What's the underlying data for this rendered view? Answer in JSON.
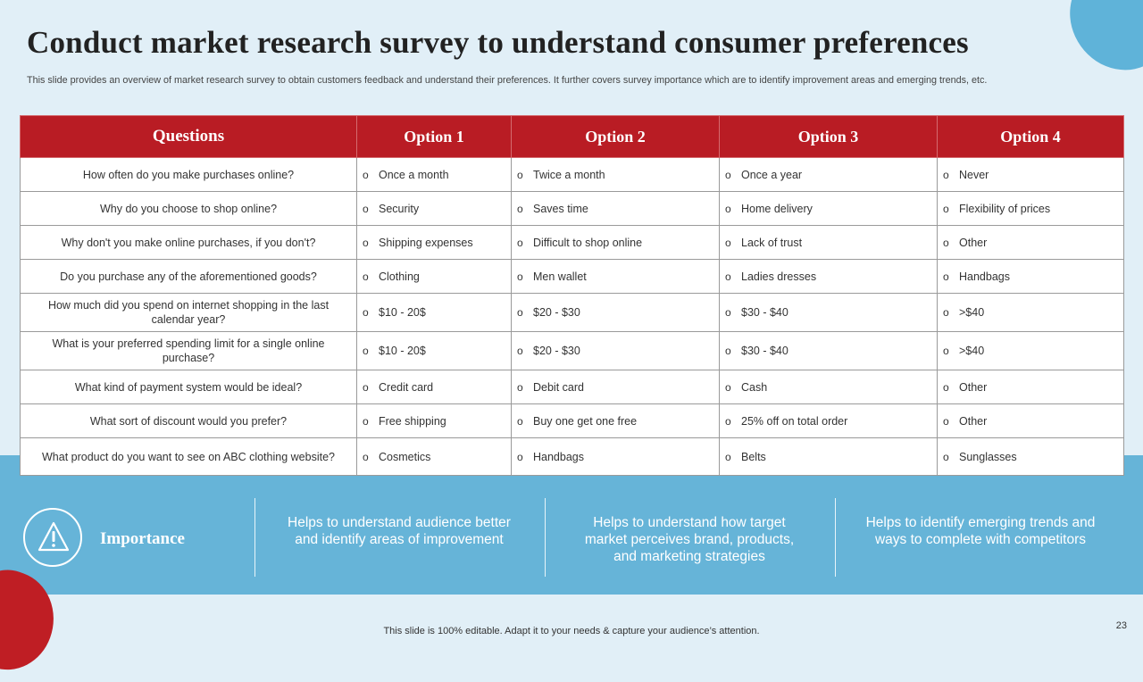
{
  "title": "Conduct market research survey to understand consumer preferences",
  "subtitle": "This slide provides an overview of market research survey to obtain customers feedback and understand their preferences. It further covers survey importance which are to identify improvement areas and emerging trends, etc.",
  "table": {
    "headers": [
      "Questions",
      "Option 1",
      "Option 2",
      "Option 3",
      "Option 4"
    ],
    "bullet_glyph": "o",
    "rows": [
      {
        "question": "How often do you make purchases online?",
        "options": [
          "Once a month",
          "Twice a month",
          "Once a year",
          "Never"
        ]
      },
      {
        "question": "Why do you choose to shop online?",
        "options": [
          "Security",
          "Saves time",
          "Home delivery",
          "Flexibility of prices"
        ]
      },
      {
        "question": "Why don't you make online purchases,  if you don't?",
        "options": [
          "Shipping expenses",
          "Difficult to shop online",
          "Lack of trust",
          "Other"
        ]
      },
      {
        "question": "Do you purchase any of the aforementioned  goods?",
        "options": [
          "Clothing",
          "Men wallet",
          "Ladies dresses",
          "Handbags"
        ]
      },
      {
        "question": "How much did you spend on internet shopping in the last calendar year?",
        "options": [
          "$10 - 20$",
          "$20 - $30",
          "$30 - $40",
          ">$40"
        ]
      },
      {
        "question": "What is your preferred  spending limit for a single online purchase?",
        "options": [
          "$10 - 20$",
          "$20 - $30",
          "$30 - $40",
          ">$40"
        ]
      },
      {
        "question": "What kind of payment system would be ideal?",
        "options": [
          "Credit card",
          "Debit card",
          "Cash",
          "Other"
        ]
      },
      {
        "question": "What sort of discount would you prefer?",
        "options": [
          "Free shipping",
          "Buy one get one free",
          "25% off on total order",
          "Other"
        ]
      },
      {
        "question": "What product do you want to see on ABC clothing website?",
        "options": [
          "Cosmetics",
          "Handbags",
          "Belts",
          "Sunglasses"
        ]
      }
    ]
  },
  "importance": {
    "label": "Importance",
    "icon": "warning-icon",
    "points": [
      "Helps to understand audience better and identify areas of improvement",
      "Helps to understand how target market perceives brand, products, and marketing strategies",
      "Helps to identify emerging trends and ways to complete with competitors"
    ]
  },
  "footer": "This slide is 100% editable. Adapt it to your needs & capture your audience’s attention.",
  "page_number": "23",
  "colors": {
    "accent_red": "#b91c24",
    "accent_blue": "#66b4d8",
    "background": "#e1eff7"
  }
}
